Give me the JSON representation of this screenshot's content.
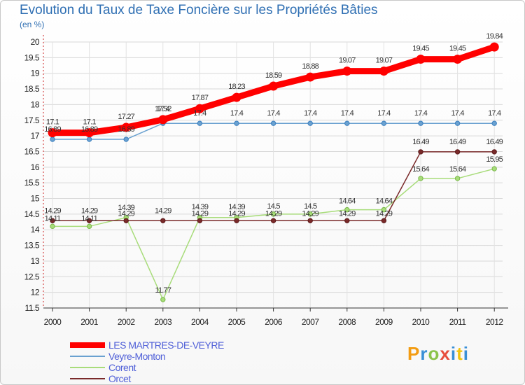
{
  "title": "Evolution du Taux de Taxe Foncière sur les Propriétés Bâties",
  "unit_label": "(en %)",
  "logo": {
    "text": "Proxiti",
    "colors": [
      "#f39c12",
      "#3a8fd6",
      "#8bc34a",
      "#e74c3c",
      "#3a8fd6",
      "#f1c40f",
      "#3a8fd6"
    ]
  },
  "chart_data": {
    "type": "line",
    "title": "Evolution du Taux de Taxe Foncière sur les Propriétés Bâties",
    "ylabel": "(en %)",
    "xlabel": "",
    "x": [
      "2000",
      "2001",
      "2002",
      "2003",
      "2004",
      "2005",
      "2006",
      "2007",
      "2008",
      "2009",
      "2010",
      "2011",
      "2012"
    ],
    "ylim": [
      11.5,
      20
    ],
    "yticks": [
      "11.5",
      "12",
      "12.5",
      "13",
      "13.5",
      "14",
      "14.5",
      "15",
      "15.5",
      "16",
      "16.5",
      "17",
      "17.5",
      "18",
      "18.5",
      "19",
      "19.5",
      "20"
    ],
    "grid": true,
    "legend_position": "bottom-left",
    "series": [
      {
        "name": "LES MARTRES-DE-VEYRE",
        "color": "#ff0000",
        "width": 9,
        "values": [
          17.1,
          17.1,
          17.27,
          17.52,
          17.87,
          18.23,
          18.59,
          18.88,
          19.07,
          19.07,
          19.45,
          19.45,
          19.84
        ],
        "labels": [
          "17.1",
          "17.1",
          "17.27",
          "17.52",
          "17.87",
          "18.23",
          "18.59",
          "18.88",
          "19.07",
          "19.07",
          "19.45",
          "19.45",
          "19.84"
        ]
      },
      {
        "name": "Veyre-Monton",
        "color": "#6aa1d0",
        "width": 1.5,
        "values": [
          16.89,
          16.89,
          16.89,
          17.4,
          17.4,
          17.4,
          17.4,
          17.4,
          17.4,
          17.4,
          17.4,
          17.4,
          17.4
        ],
        "labels": [
          "16.89",
          "16.89",
          "16.89",
          "17.4",
          "17.4",
          "17.4",
          "17.4",
          "17.4",
          "17.4",
          "17.4",
          "17.4",
          "17.4",
          "17.4"
        ]
      },
      {
        "name": "Corent",
        "color": "#a8dc7a",
        "width": 1.5,
        "values": [
          14.11,
          14.11,
          14.39,
          11.77,
          14.39,
          14.39,
          14.5,
          14.5,
          14.64,
          14.64,
          15.64,
          15.64,
          15.95
        ],
        "labels": [
          "14.11",
          "14.11",
          "14.39",
          "11.77",
          "14.39",
          "14.39",
          "14.5",
          "14.5",
          "14.64",
          "14.64",
          "15.64",
          "15.64",
          "15.95"
        ]
      },
      {
        "name": "Orcet",
        "color": "#7a2a2a",
        "width": 1.5,
        "values": [
          14.29,
          14.29,
          14.29,
          14.29,
          14.29,
          14.29,
          14.29,
          14.29,
          14.29,
          14.29,
          16.49,
          16.49,
          16.49
        ],
        "labels": [
          "14.29",
          "14.29",
          "14.29",
          "14.29",
          "14.29",
          "14.29",
          "14.29",
          "14.29",
          "14.29",
          "14.29",
          "16.49",
          "16.49",
          "16.49"
        ]
      }
    ]
  }
}
